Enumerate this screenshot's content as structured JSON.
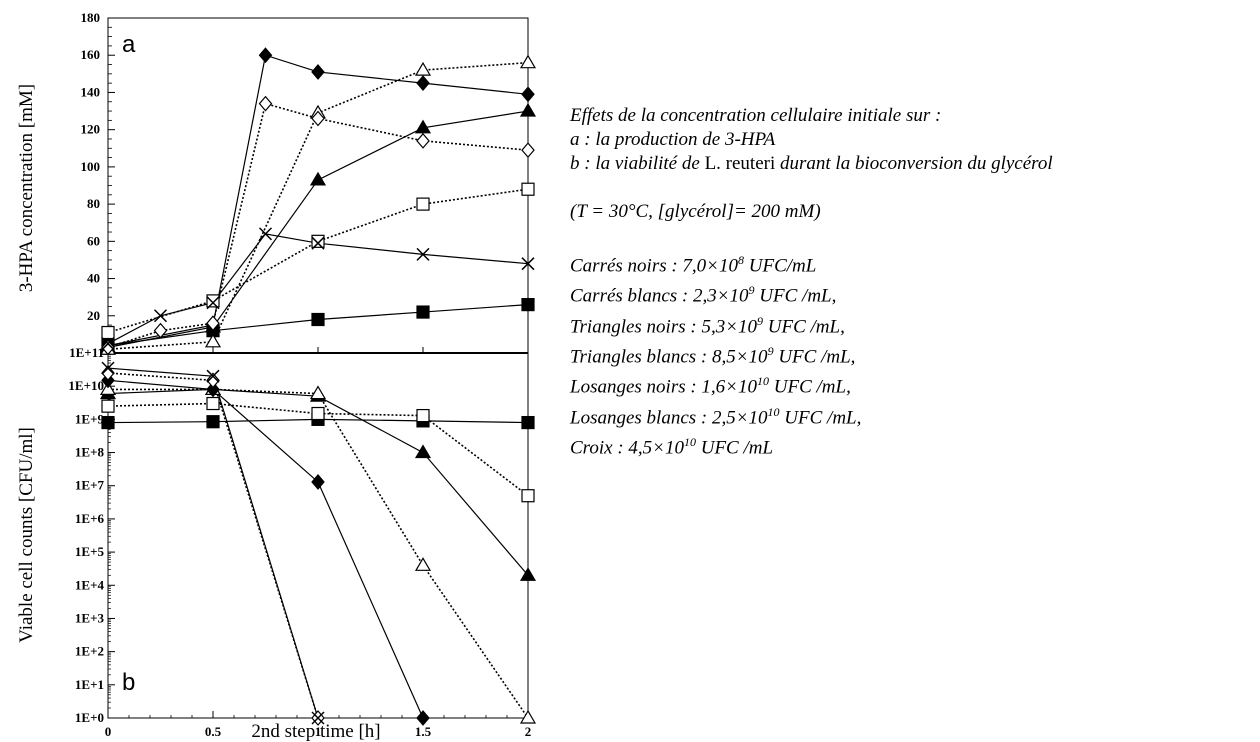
{
  "chart_data": [
    {
      "panel": "a",
      "type": "line",
      "ylabel": "3-HPA concentration [mM]",
      "xlabel": "2nd step time [h]",
      "ylim": [
        0,
        180
      ],
      "yticks": [
        "20",
        "40",
        "60",
        "80",
        "100",
        "120",
        "140",
        "160",
        "180"
      ],
      "series": [
        {
          "marker": "filled-square",
          "line": "solid",
          "x": [
            0,
            0.5,
            1,
            1.5,
            2
          ],
          "y": [
            4,
            12,
            18,
            22,
            26
          ]
        },
        {
          "marker": "open-square",
          "line": "dotted",
          "x": [
            0,
            0.5,
            1,
            1.5,
            2
          ],
          "y": [
            11,
            28,
            60,
            80,
            88
          ]
        },
        {
          "marker": "filled-triangle",
          "line": "solid",
          "x": [
            0,
            0.5,
            1,
            1.5,
            2
          ],
          "y": [
            3,
            14,
            93,
            121,
            130
          ]
        },
        {
          "marker": "open-triangle",
          "line": "dotted",
          "x": [
            0,
            0.5,
            1,
            1.5,
            2
          ],
          "y": [
            2,
            6,
            129,
            152,
            156
          ]
        },
        {
          "marker": "filled-diamond",
          "line": "solid",
          "x": [
            0,
            0.5,
            0.75,
            1,
            1.5,
            2
          ],
          "y": [
            4,
            15,
            160,
            151,
            145,
            139
          ]
        },
        {
          "marker": "open-diamond",
          "line": "dotted",
          "x": [
            0,
            0.25,
            0.5,
            0.75,
            1,
            1.5,
            2
          ],
          "y": [
            3,
            12,
            16,
            134,
            126,
            114,
            109
          ]
        },
        {
          "marker": "cross",
          "line": "solid",
          "x": [
            0,
            0.25,
            0.5,
            0.75,
            1,
            1.5,
            2
          ],
          "y": [
            5,
            20,
            27,
            64,
            59,
            53,
            48
          ]
        }
      ]
    },
    {
      "panel": "b",
      "type": "line",
      "yscale": "log",
      "ylabel": "Viable cell counts [CFU/ml]",
      "xlabel": "2nd step time [h]",
      "ylim": [
        1,
        100000000000
      ],
      "yticks": [
        "1E+0",
        "1E+1",
        "1E+2",
        "1E+3",
        "1E+4",
        "1E+5",
        "1E+6",
        "1E+7",
        "1E+8",
        "1E+9",
        "1E+10",
        "1E+11"
      ],
      "xticks": [
        "0",
        "0.5",
        "1",
        "1.5",
        "2"
      ],
      "series": [
        {
          "marker": "filled-square",
          "line": "solid",
          "x": [
            0,
            0.5,
            1,
            1.5,
            2
          ],
          "y": [
            800000000,
            850000000,
            1000000000,
            900000000,
            800000000
          ]
        },
        {
          "marker": "open-square",
          "line": "dotted",
          "x": [
            0,
            0.5,
            1,
            1.5,
            2
          ],
          "y": [
            2500000000,
            3000000000,
            1500000000,
            1300000000,
            5000000
          ]
        },
        {
          "marker": "filled-triangle",
          "line": "solid",
          "x": [
            0,
            0.5,
            1,
            1.5,
            2
          ],
          "y": [
            6000000000,
            8000000000,
            5000000000,
            100000000,
            20000
          ]
        },
        {
          "marker": "open-triangle",
          "line": "dotted",
          "x": [
            0,
            0.5,
            1,
            1.5,
            2
          ],
          "y": [
            8000000000,
            8000000000,
            6000000000,
            40000,
            1
          ]
        },
        {
          "marker": "filled-diamond",
          "line": "solid",
          "x": [
            0,
            0.5,
            1,
            1.5
          ],
          "y": [
            15000000000,
            8000000000,
            13000000,
            1
          ]
        },
        {
          "marker": "open-diamond",
          "line": "dotted",
          "x": [
            0,
            0.5,
            1
          ],
          "y": [
            25000000000,
            15000000000,
            1
          ]
        },
        {
          "marker": "cross",
          "line": "solid",
          "x": [
            0,
            0.5,
            1
          ],
          "y": [
            35000000000,
            20000000000,
            1
          ]
        }
      ]
    }
  ],
  "caption": {
    "line1": "Effets de la concentration cellulaire initiale sur :",
    "line2": "a : la production de 3-HPA",
    "line3_pre": "b : la viabilité de ",
    "line3_species": "L. reuteri",
    "line3_post": " durant la bioconversion du glycérol",
    "conditions": "(T = 30°C, [glycérol]= 200 mM)",
    "legend": [
      {
        "label": "Carrés noirs : 7,0×10",
        "exp": "8",
        "unit": " UFC/mL"
      },
      {
        "label": "Carrés blancs : 2,3×10",
        "exp": "9",
        "unit": " UFC /mL,"
      },
      {
        "label": "Triangles noirs : 5,3×10",
        "exp": "9",
        "unit": " UFC /mL,"
      },
      {
        "label": "Triangles blancs : 8,5×10",
        "exp": "9",
        "unit": " UFC /mL,"
      },
      {
        "label": "Losanges noirs : 1,6×10",
        "exp": "10",
        "unit": " UFC /mL,"
      },
      {
        "label": "Losanges blancs : 2,5×10",
        "exp": "10",
        "unit": " UFC /mL,"
      },
      {
        "label": "Croix : 4,5×10",
        "exp": "10",
        "unit": " UFC /mL"
      }
    ]
  }
}
